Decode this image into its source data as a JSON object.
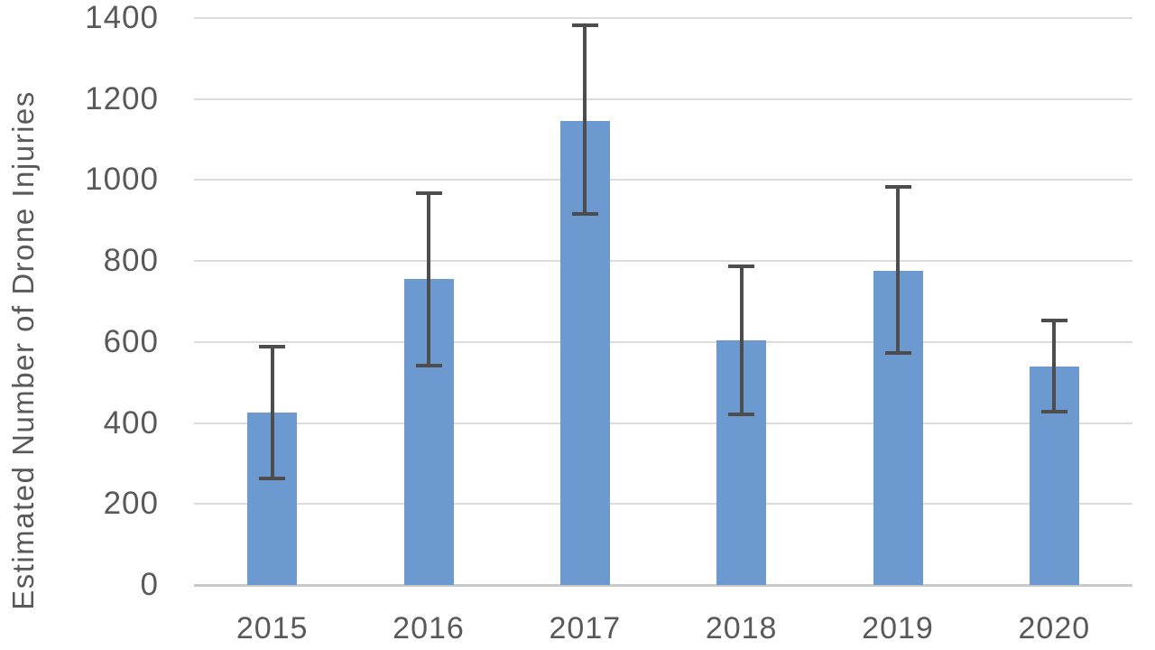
{
  "chart_data": {
    "type": "bar",
    "title": "",
    "xlabel": "",
    "ylabel": "Estimated Number of Drone Injuries",
    "categories": [
      "2015",
      "2016",
      "2017",
      "2018",
      "2019",
      "2020"
    ],
    "series": [
      {
        "name": "Estimated Number of Drone Injuries",
        "values": [
          425,
          755,
          1145,
          605,
          775,
          540
        ],
        "error_low": [
          260,
          540,
          915,
          420,
          570,
          425
        ],
        "error_high": [
          590,
          970,
          1385,
          790,
          985,
          655
        ]
      }
    ],
    "ylim": [
      0,
      1400
    ],
    "yticks": [
      0,
      200,
      400,
      600,
      800,
      1000,
      1200,
      1400
    ],
    "grid": "horizontal",
    "legend_position": "none",
    "error_bars": true
  },
  "style": {
    "bar_fill": "#6C9AD0",
    "error_bar_color": "#4D4D4D",
    "gridline_color": "#DCDCDC",
    "axis_line_color": "#C9C9C9",
    "tick_label_color": "#595959",
    "axis_title_color": "#595959",
    "background": "#FFFFFF"
  }
}
